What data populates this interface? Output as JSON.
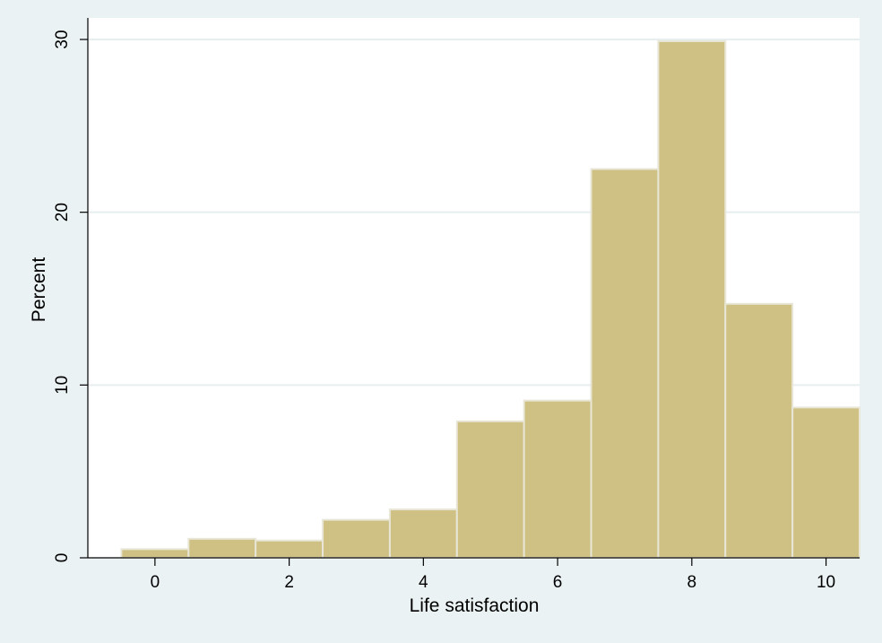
{
  "chart_data": {
    "type": "bar",
    "histogram": true,
    "x": [
      0,
      1,
      2,
      3,
      4,
      5,
      6,
      7,
      8,
      9,
      10
    ],
    "bin_width": 1,
    "values": [
      0.5,
      1.1,
      1.0,
      2.2,
      2.8,
      7.9,
      9.1,
      22.5,
      29.9,
      14.7,
      8.7
    ],
    "xlabel": "Life satisfaction",
    "ylabel": "Percent",
    "xlim": [
      -1,
      10.5
    ],
    "ylim": [
      0,
      30
    ],
    "xticks": [
      0,
      2,
      4,
      6,
      8,
      10
    ],
    "yticks": [
      0,
      10,
      20,
      30
    ],
    "grid": true,
    "colors": {
      "bar_fill": "#cfc083",
      "bar_edge": "#e8e6d6",
      "plot_bg": "#ffffff",
      "outer_bg": "#eaf2f3",
      "grid": "#e6eeef",
      "axis": "#000000"
    }
  }
}
